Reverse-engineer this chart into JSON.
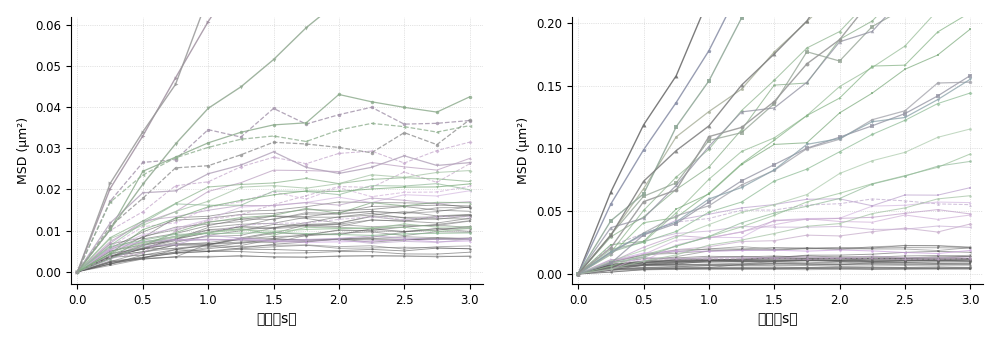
{
  "xlabel": "时间（s）",
  "ylabel_left": "MSD (μm²)",
  "ylabel_right": "MSD (μm²)",
  "xlim": [
    -0.05,
    3.1
  ],
  "xticks": [
    0.0,
    0.5,
    1.0,
    1.5,
    2.0,
    2.5,
    3.0
  ],
  "left_ylim": [
    -0.003,
    0.062
  ],
  "left_yticks": [
    0.0,
    0.01,
    0.02,
    0.03,
    0.04,
    0.05,
    0.06
  ],
  "right_ylim": [
    -0.008,
    0.205
  ],
  "right_yticks": [
    0.0,
    0.05,
    0.1,
    0.15,
    0.2
  ],
  "n_time_points": 13,
  "bg_color": "#ffffff"
}
